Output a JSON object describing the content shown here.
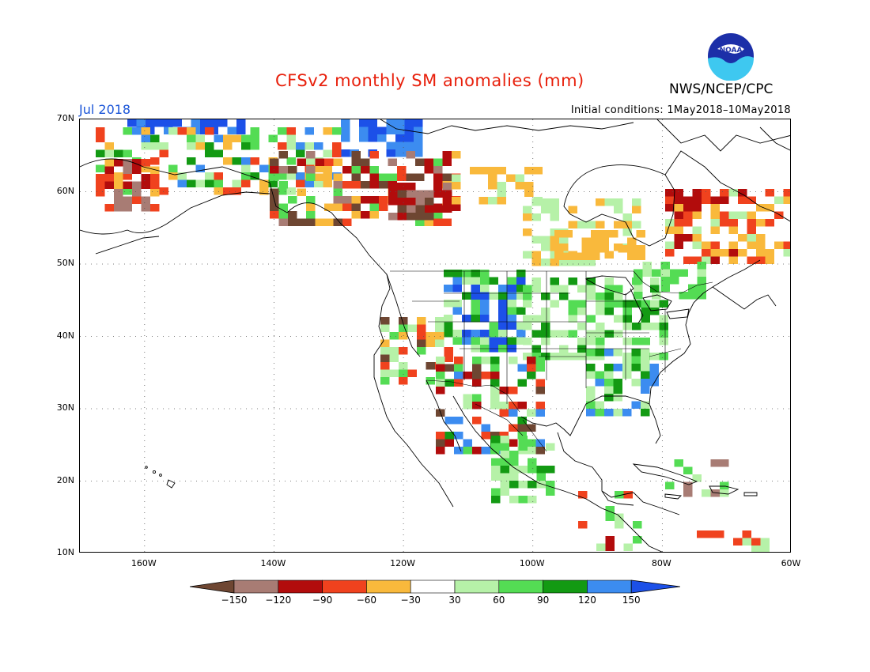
{
  "title": "CFSv2 monthly SM anomalies (mm)",
  "agency": "NWS/NCEP/CPC",
  "logo_text": "NOAA",
  "month": "Jul 2018",
  "initial_conditions": "Initial conditions: 1May2018–10May2018",
  "lat_labels": [
    "70N",
    "60N",
    "50N",
    "40N",
    "30N",
    "20N",
    "10N"
  ],
  "lon_labels": [
    "160W",
    "140W",
    "120W",
    "100W",
    "80W",
    "60W"
  ],
  "legend": {
    "labels": [
      "−150",
      "−120",
      "−90",
      "−60",
      "−30",
      "30",
      "60",
      "90",
      "120",
      "150"
    ],
    "colors": [
      "#6e4632",
      "#a87c74",
      "#b20c0c",
      "#f0421e",
      "#f9b93c",
      "#ffffff",
      "#b6f1a8",
      "#54dc54",
      "#139a13",
      "#3c8cf0",
      "#1c50e8"
    ]
  },
  "map": {
    "lat_range": [
      10,
      70
    ],
    "lon_range": [
      -170,
      -60
    ],
    "grid": "dotted",
    "variable": "soil moisture anomaly (mm)"
  }
}
